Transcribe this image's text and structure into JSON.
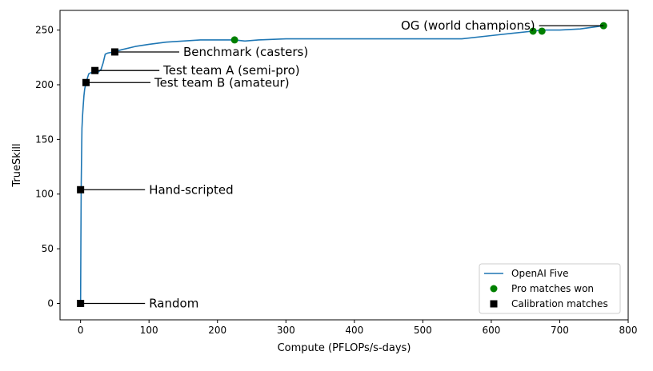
{
  "chart_data": {
    "type": "line",
    "title": "",
    "xlabel": "Compute (PFLOPs/s-days)",
    "ylabel": "TrueSkill",
    "xlim": [
      -30,
      800
    ],
    "ylim": [
      -15,
      268
    ],
    "xticks": [
      0,
      100,
      200,
      300,
      400,
      500,
      600,
      700,
      800
    ],
    "yticks": [
      0,
      50,
      100,
      150,
      200,
      250
    ],
    "grid": false,
    "legend_position": "lower-right",
    "colors": {
      "line": "#1f77b4",
      "pro_matches": "#008000",
      "calibration": "#000000"
    },
    "series": [
      {
        "name": "OpenAI Five",
        "type": "line",
        "x": [
          0,
          0.5,
          1,
          2,
          3,
          4,
          5,
          6,
          8,
          10,
          12,
          15,
          20,
          25,
          30,
          33,
          36,
          40,
          48,
          60,
          80,
          100,
          125,
          150,
          175,
          200,
          225,
          240,
          260,
          300,
          320,
          400,
          500,
          557,
          600,
          630,
          660,
          675,
          700,
          730,
          765
        ],
        "y": [
          0,
          60,
          110,
          160,
          172,
          182,
          190,
          196,
          202,
          206,
          210,
          211,
          211,
          211,
          214,
          220,
          228,
          229,
          230,
          232,
          235,
          237,
          239,
          240,
          241,
          241,
          241,
          240,
          241,
          242,
          242,
          242,
          242,
          242,
          245,
          247,
          249,
          250,
          250,
          251,
          254
        ]
      },
      {
        "name": "Pro matches won",
        "type": "scatter",
        "marker": "circle",
        "x": [
          225,
          661,
          674,
          764
        ],
        "y": [
          241,
          249,
          249,
          254
        ]
      },
      {
        "name": "Calibration matches",
        "type": "scatter",
        "marker": "square",
        "x": [
          0,
          0,
          8,
          21,
          50
        ],
        "y": [
          0,
          104,
          202,
          213,
          230
        ]
      }
    ],
    "annotations": [
      {
        "text": "Random",
        "x": 0,
        "y": 0,
        "text_x": 100
      },
      {
        "text": "Hand-scripted",
        "x": 0,
        "y": 104,
        "text_x": 100
      },
      {
        "text": "Test team B (amateur)",
        "x": 8,
        "y": 202,
        "text_x": 108
      },
      {
        "text": "Test team A (semi-pro)",
        "x": 21,
        "y": 213,
        "text_x": 121
      },
      {
        "text": "Benchmark (casters)",
        "x": 50,
        "y": 230,
        "text_x": 150
      },
      {
        "text": "OG (world champions)",
        "x": 764,
        "y": 254,
        "text_x": 664,
        "align": "right"
      }
    ]
  }
}
